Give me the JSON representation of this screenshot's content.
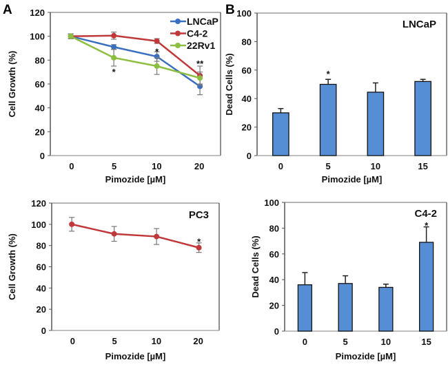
{
  "colors": {
    "LNCaP": "#3a6fc0",
    "C4-2": "#c0383a",
    "22Rv1": "#8cbf3f",
    "bar_fill": "#558ed5",
    "bar_stroke": "#111111",
    "error_bar_line": "#777777"
  },
  "chart_data": [
    {
      "id": "A-top",
      "panel_label": "A",
      "type": "line",
      "xlabel": "Pimozide [µM]",
      "ylabel": "Cell Growth (%)",
      "categories": [
        "0",
        "5",
        "10",
        "20"
      ],
      "ylim": [
        0,
        120
      ],
      "yticks": [
        0,
        20,
        40,
        60,
        80,
        100,
        120
      ],
      "legend_position": "top-right",
      "series": [
        {
          "name": "LNCaP",
          "values": [
            100,
            91,
            83,
            58
          ],
          "errors": [
            2,
            2,
            4,
            7
          ]
        },
        {
          "name": "C4-2",
          "values": [
            100,
            100.5,
            96,
            67
          ],
          "errors": [
            2,
            3,
            2,
            8
          ]
        },
        {
          "name": "22Rv1",
          "values": [
            100,
            82,
            75,
            65
          ],
          "errors": [
            2,
            7,
            7,
            5
          ]
        }
      ],
      "annotations": [
        {
          "x": "5",
          "text": "*",
          "y": 72
        },
        {
          "x": "10",
          "text": "*",
          "y": 89
        },
        {
          "x": "20",
          "text": "**",
          "y": 79
        }
      ]
    },
    {
      "id": "B-top",
      "panel_label": "B",
      "type": "bar",
      "title": "LNCaP",
      "xlabel": "Pimozide [µM]",
      "ylabel": "Dead Cells (%)",
      "categories": [
        "0",
        "5",
        "10",
        "15"
      ],
      "values": [
        30,
        50,
        44.5,
        52
      ],
      "errors": [
        3,
        3.5,
        6.5,
        1.5
      ],
      "ylim": [
        0,
        100
      ],
      "yticks": [
        0,
        20,
        40,
        60,
        80,
        100
      ],
      "annotations": [
        {
          "x": "5",
          "text": "*",
          "y": 59
        }
      ]
    },
    {
      "id": "A-bottom",
      "panel_label": "",
      "type": "line",
      "title": "PC3",
      "xlabel": "Pimozide [µM]",
      "ylabel": "Cell Growth (%)",
      "categories": [
        "0",
        "5",
        "10",
        "20"
      ],
      "ylim": [
        0,
        120
      ],
      "yticks": [
        0,
        20,
        40,
        60,
        80,
        100,
        120
      ],
      "series": [
        {
          "name": "PC3",
          "values": [
            100,
            91,
            88.5,
            78
          ],
          "errors": [
            6.5,
            7,
            7.5,
            4.5
          ]
        }
      ],
      "annotations": [
        {
          "x": "20",
          "text": "*",
          "y": 86
        }
      ]
    },
    {
      "id": "B-bottom",
      "panel_label": "",
      "type": "bar",
      "title": "C4-2",
      "xlabel": "Pimozide [µM]",
      "ylabel": "Dead Cells (%)",
      "categories": [
        "0",
        "5",
        "10",
        "15"
      ],
      "values": [
        36,
        37,
        34,
        69
      ],
      "errors": [
        9.5,
        6,
        2.5,
        12
      ],
      "ylim": [
        0,
        100
      ],
      "yticks": [
        0,
        20,
        40,
        60,
        80,
        100
      ],
      "annotations": [
        {
          "x": "15",
          "text": "*",
          "y": 84
        }
      ]
    }
  ]
}
